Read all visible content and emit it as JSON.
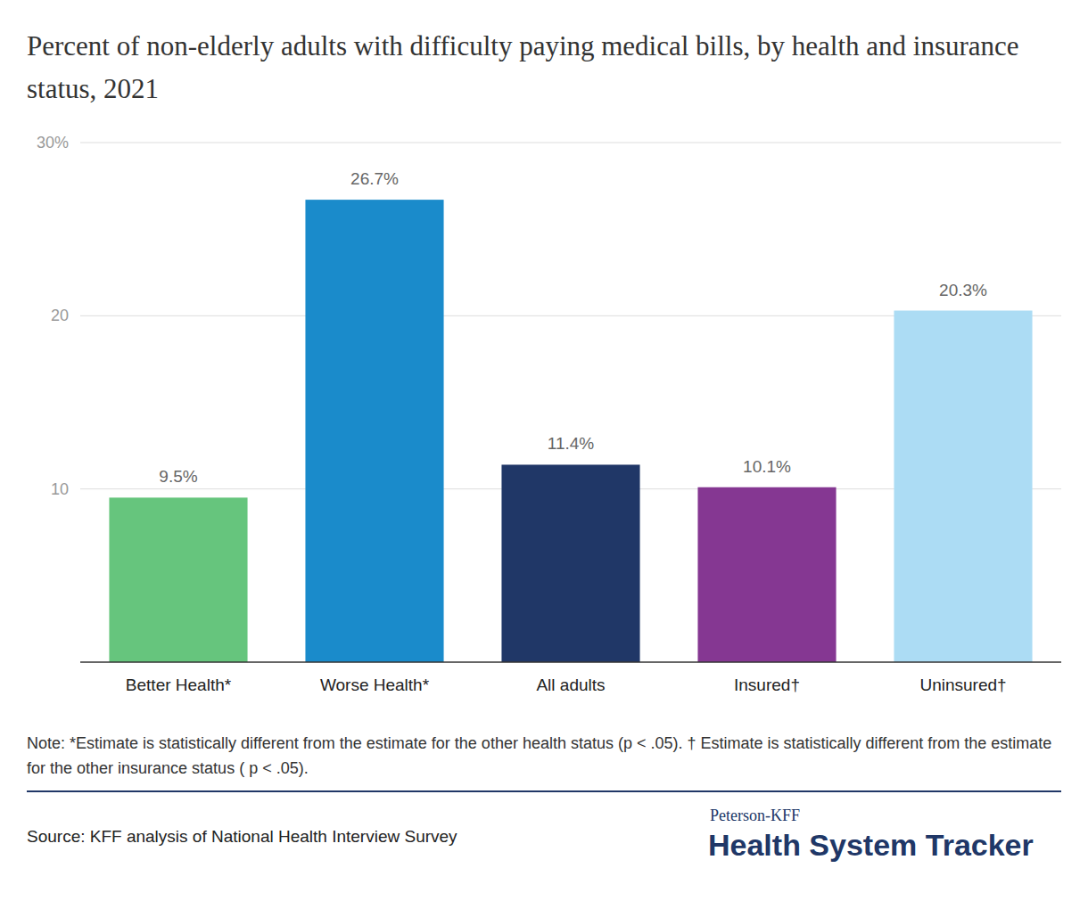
{
  "chart_data": {
    "type": "bar",
    "title": "Percent of non-elderly adults with difficulty paying medical bills, by health and insurance status, 2021",
    "categories": [
      "Better Health*",
      "Worse Health*",
      "All adults",
      "Insured†",
      "Uninsured†"
    ],
    "values": [
      9.5,
      26.7,
      11.4,
      10.1,
      20.3
    ],
    "value_labels": [
      "9.5%",
      "26.7%",
      "11.4%",
      "10.1%",
      "20.3%"
    ],
    "colors": [
      "#66c57d",
      "#1a8bcb",
      "#203767",
      "#853792",
      "#acdcf4"
    ],
    "ylim": [
      0,
      30
    ],
    "yticks": [
      10,
      20,
      {
        "value": 30,
        "label": "30%"
      }
    ],
    "grid": true,
    "data_labels": true,
    "note": "Note: *Estimate is statistically different from the estimate for the other health status (p < .05). † Estimate is statistically different from the estimate for the other insurance status ( p < .05).",
    "source": "Source: KFF analysis of National Health Interview Survey",
    "brand": {
      "top": "Peterson-KFF",
      "main": "Health System Tracker"
    }
  }
}
